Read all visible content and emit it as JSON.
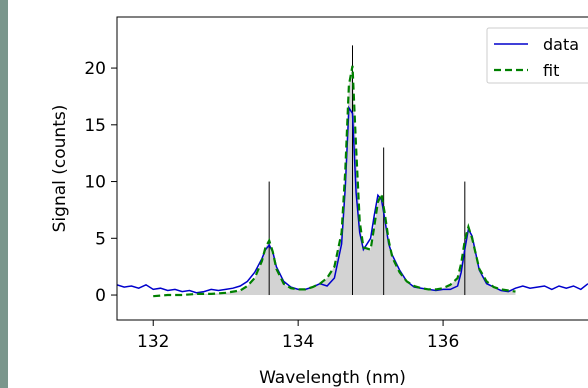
{
  "chart_data": {
    "type": "line",
    "xlabel": "Wavelength (nm)",
    "ylabel": "Signal (counts)",
    "xlim": [
      131.5,
      138.0
    ],
    "ylim": [
      -2.2,
      24.5
    ],
    "x_ticks": [
      132,
      134,
      136
    ],
    "y_ticks": [
      0,
      5,
      10,
      15,
      20
    ],
    "grid": false,
    "legend_position": "top-right",
    "colors": {
      "data": "#0000cc",
      "fit": "#008000",
      "fill": "#d3d3d3",
      "lines": "#000000",
      "side_bar": "#7a968c"
    },
    "series": [
      {
        "name": "data",
        "style": "solid",
        "x": [
          131.5,
          131.6,
          131.7,
          131.8,
          131.9,
          132.0,
          132.1,
          132.2,
          132.3,
          132.4,
          132.5,
          132.6,
          132.7,
          132.8,
          132.9,
          133.0,
          133.1,
          133.2,
          133.3,
          133.4,
          133.5,
          133.55,
          133.6,
          133.65,
          133.7,
          133.8,
          133.9,
          134.0,
          134.1,
          134.2,
          134.3,
          134.4,
          134.5,
          134.6,
          134.65,
          134.7,
          134.75,
          134.8,
          134.85,
          134.9,
          135.0,
          135.05,
          135.1,
          135.15,
          135.2,
          135.25,
          135.3,
          135.4,
          135.5,
          135.6,
          135.7,
          135.8,
          135.9,
          136.0,
          136.1,
          136.2,
          136.25,
          136.3,
          136.35,
          136.4,
          136.5,
          136.6,
          136.7,
          136.8,
          136.9,
          137.0,
          137.1,
          137.2,
          137.3,
          137.4,
          137.5,
          137.6,
          137.7,
          137.8,
          137.9,
          138.0
        ],
        "y": [
          0.9,
          0.7,
          0.8,
          0.6,
          0.9,
          0.5,
          0.6,
          0.4,
          0.5,
          0.3,
          0.4,
          0.2,
          0.3,
          0.5,
          0.4,
          0.5,
          0.6,
          0.8,
          1.2,
          2.0,
          3.2,
          4.0,
          4.4,
          3.8,
          2.5,
          1.2,
          0.7,
          0.5,
          0.5,
          0.7,
          1.0,
          0.8,
          1.5,
          4.5,
          9.5,
          16.5,
          16.0,
          9.0,
          5.5,
          4.0,
          5.0,
          7.0,
          8.8,
          8.4,
          6.5,
          4.5,
          3.5,
          2.2,
          1.2,
          0.7,
          0.6,
          0.5,
          0.4,
          0.5,
          0.5,
          0.8,
          2.0,
          4.0,
          5.8,
          5.2,
          2.2,
          1.0,
          0.7,
          0.4,
          0.3,
          0.6,
          0.8,
          0.6,
          0.7,
          0.8,
          0.5,
          0.8,
          0.6,
          0.8,
          0.5,
          1.0
        ]
      },
      {
        "name": "fit",
        "style": "dashed",
        "x": [
          132.0,
          132.2,
          132.4,
          132.6,
          132.8,
          133.0,
          133.2,
          133.3,
          133.4,
          133.5,
          133.55,
          133.6,
          133.65,
          133.7,
          133.8,
          133.9,
          134.0,
          134.1,
          134.2,
          134.3,
          134.4,
          134.5,
          134.6,
          134.65,
          134.7,
          134.75,
          134.8,
          134.85,
          134.9,
          135.0,
          135.05,
          135.1,
          135.15,
          135.2,
          135.25,
          135.3,
          135.4,
          135.5,
          135.6,
          135.7,
          135.8,
          135.9,
          136.0,
          136.1,
          136.2,
          136.25,
          136.3,
          136.35,
          136.4,
          136.5,
          136.6,
          136.7,
          136.8,
          136.9,
          137.0
        ],
        "y": [
          -0.1,
          0.0,
          0.0,
          0.1,
          0.1,
          0.2,
          0.4,
          0.8,
          1.5,
          3.0,
          4.2,
          4.8,
          3.8,
          2.3,
          1.0,
          0.6,
          0.5,
          0.5,
          0.7,
          1.0,
          1.5,
          2.5,
          5.5,
          11.0,
          18.5,
          20.2,
          13.0,
          6.5,
          4.2,
          4.0,
          6.0,
          8.2,
          8.9,
          7.0,
          4.8,
          3.3,
          2.0,
          1.2,
          0.8,
          0.6,
          0.5,
          0.5,
          0.6,
          0.9,
          1.5,
          2.8,
          4.8,
          6.0,
          5.0,
          2.3,
          1.2,
          0.7,
          0.5,
          0.4,
          0.3
        ]
      }
    ],
    "vertical_lines": [
      {
        "x": 133.6,
        "y_top": 10.0
      },
      {
        "x": 134.75,
        "y_top": 22.0
      },
      {
        "x": 135.18,
        "y_top": 13.0
      },
      {
        "x": 136.3,
        "y_top": 10.0
      }
    ]
  }
}
